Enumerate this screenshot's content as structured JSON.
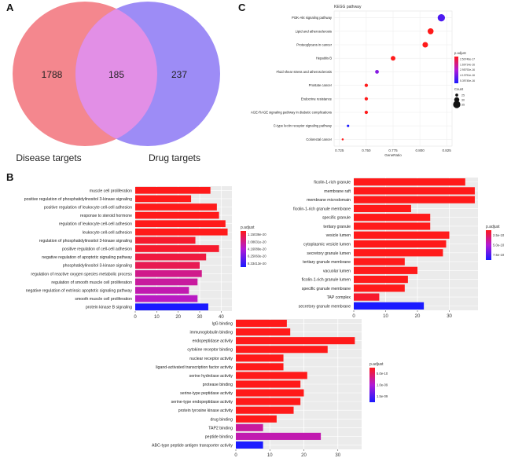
{
  "panels": {
    "a": "A",
    "b": "B",
    "c": "C"
  },
  "venn": {
    "left_only": "1788",
    "overlap": "185",
    "right_only": "237",
    "left_label": "Disease targets",
    "right_label": "Drug targets",
    "left_color": "#f4878e",
    "right_color": "#9d8cf6",
    "overlap_color": "#e28fe6"
  },
  "colors": {
    "grad_red": "#ff1a1a",
    "grad_purple": "#b11ad6",
    "grad_blue": "#1a1aff",
    "panel_bg": "#ebebeb",
    "dot_red": "#e8302b",
    "dot_purple": "#b53bd1",
    "dot_blue": "#2f3fe0"
  },
  "chart_data": [
    {
      "type": "scatter",
      "title": "KEGG pathway",
      "xlabel": "GeneRatio",
      "xlim": [
        0.72,
        0.83
      ],
      "x_ticks": [
        "0.725",
        "0.750",
        "0.775",
        "0.800",
        "0.825"
      ],
      "x_tick_values": [
        0.725,
        0.75,
        0.775,
        0.8,
        0.825
      ],
      "legend_title": "p.adjust",
      "legend_ticks": [
        "2.50746e-17",
        "1.69714e-16",
        "2.95792e-16",
        "4.13751e-16",
        "5.39745e-16"
      ],
      "size_title": "Count",
      "size_ticks": [
        "25",
        "30",
        "35"
      ],
      "categories": [
        "PI3K-Akt signaling pathway",
        "Lipid and atherosclerosis",
        "Proteoglycans in cancer",
        "Hepatitis B",
        "Fluid shear stress and atherosclerosis",
        "Prostate cancer",
        "Endocrine resistance",
        "AGE-RAGE signaling pathway in diabetic complications",
        "C-type lectin receptor signaling pathway",
        "Colorectal cancer"
      ],
      "x": [
        0.82,
        0.81,
        0.805,
        0.775,
        0.76,
        0.75,
        0.75,
        0.75,
        0.733,
        0.728
      ],
      "count": [
        35,
        32,
        31,
        29,
        27,
        26,
        26,
        26,
        24,
        23
      ],
      "p_adjust": [
        4.5e-16,
        1e-17,
        1e-17,
        1e-17,
        3.5e-16,
        1e-17,
        1e-17,
        1e-17,
        5.39e-16,
        1e-17
      ]
    },
    {
      "type": "bar",
      "orientation": "horizontal",
      "legend_title": "p.adjust",
      "legend_ticks": [
        "1.15036e-20",
        "2.08631e-20",
        "4.16089e-20",
        "6.25063e-20",
        "8.33413e-20"
      ],
      "xlim": [
        0,
        45
      ],
      "x_ticks": [
        "0",
        "10",
        "20",
        "30",
        "40"
      ],
      "categories": [
        "muscle cell proliferation",
        "positive regulation of phosphatidylinositol 3-kinase signaling",
        "positive regulation of leukocyte cell-cell adhesion",
        "response to steroid hormone",
        "regulation of leukocyte cell-cell adhesion",
        "leukocyte cell-cell adhesion",
        "regulation of phosphatidylinositol 3-kinase signaling",
        "positive regulation of cell-cell adhesion",
        "negative regulation of apoptotic signaling pathway",
        "phosphatidylinositol 3-kinase signaling",
        "regulation of reactive oxygen species metabolic process",
        "regulation of smooth muscle cell proliferation",
        "negative regulation of extrinsic apoptotic signaling pathway",
        "smooth muscle cell proliferation",
        "protein kinase B signaling"
      ],
      "values": [
        35,
        26,
        38,
        39,
        42,
        43,
        28,
        39,
        33,
        30,
        31,
        29,
        25,
        29,
        34
      ],
      "color_t": [
        0.0,
        0.0,
        0.0,
        0.0,
        0.0,
        0.0,
        0.05,
        0.05,
        0.1,
        0.15,
        0.3,
        0.35,
        0.4,
        0.45,
        1.0
      ]
    },
    {
      "type": "bar",
      "orientation": "horizontal",
      "legend_title": "p.adjust",
      "legend_ticks": [
        "2.5e-10",
        "5.0e-10",
        "7.5e-10"
      ],
      "xlim": [
        0,
        39
      ],
      "x_ticks": [
        "0",
        "10",
        "20",
        "30"
      ],
      "categories": [
        "ficolin-1-rich granule",
        "membrane raft",
        "membrane microdomain",
        "ficolin-1-rich granule membrane",
        "specific granule",
        "tertiary granule",
        "vesicle lumen",
        "cytoplasmic vesicle lumen",
        "secretory granule lumen",
        "tertiary granule membrane",
        "vacuolar lumen",
        "ficolin-1-rich granule lumen",
        "specific granule membrane",
        "TAP complex",
        "secretory granule membrane"
      ],
      "values": [
        35,
        38,
        38,
        18,
        24,
        24,
        30,
        29,
        28,
        16,
        20,
        17,
        16,
        8,
        22
      ],
      "color_t": [
        0.0,
        0.0,
        0.0,
        0.0,
        0.0,
        0.0,
        0.0,
        0.0,
        0.0,
        0.0,
        0.0,
        0.0,
        0.0,
        0.05,
        1.0
      ]
    },
    {
      "type": "bar",
      "orientation": "horizontal",
      "legend_title": "p.adjust",
      "legend_ticks": [
        "5.0e-10",
        "1.0e-09",
        "1.5e-09"
      ],
      "xlim": [
        0,
        37
      ],
      "x_ticks": [
        "0",
        "10",
        "20",
        "30"
      ],
      "categories": [
        "IgG binding",
        "immunoglobulin binding",
        "endopeptidase activity",
        "cytokine receptor binding",
        "nuclear receptor activity",
        "ligand-activated transcription factor activity",
        "serine hydrolase activity",
        "protease binding",
        "serine-type peptidase activity",
        "serine-type endopeptidase activity",
        "protein tyrosine kinase activity",
        "drug binding",
        "TAP2 binding",
        "peptide binding",
        "ABC-type peptide antigen transporter activity"
      ],
      "values": [
        15,
        16,
        35,
        27,
        14,
        14,
        21,
        19,
        20,
        19,
        17,
        12,
        8,
        25,
        8
      ],
      "color_t": [
        0.0,
        0.0,
        0.0,
        0.0,
        0.0,
        0.0,
        0.0,
        0.0,
        0.0,
        0.0,
        0.0,
        0.0,
        0.35,
        0.4,
        1.0
      ]
    }
  ]
}
